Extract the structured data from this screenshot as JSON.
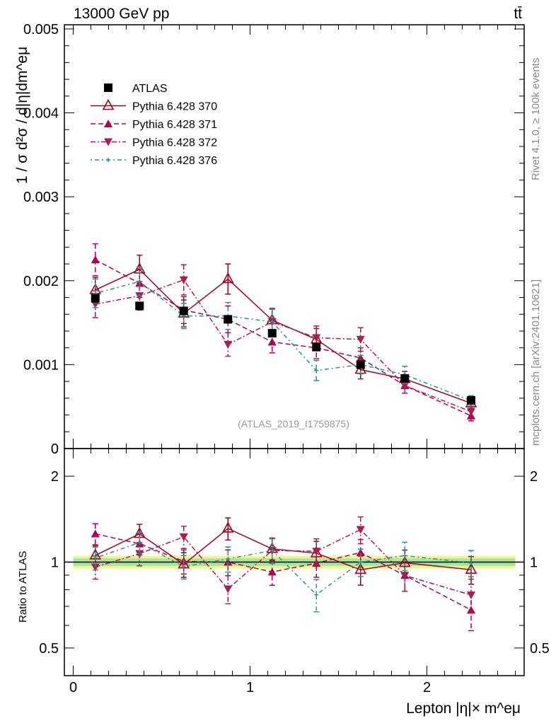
{
  "header": {
    "left": "13000 GeV pp",
    "right": "tt̄"
  },
  "side_labels": {
    "rivet": "Rivet 4.1.0, ≥ 100k events",
    "mcplots": "mcplots.cern.ch [arXiv:2401.10621]"
  },
  "watermark": "(ATLAS_2019_I1759875)",
  "chart_data": [
    {
      "type": "line",
      "panel": "main",
      "ylabel": "1 / σ  d²σ / d|η|dm^eμ",
      "xlabel": "Lepton |η|× m^eμ",
      "xlim": [
        -0.05,
        2.55
      ],
      "ylim": [
        0,
        0.00505
      ],
      "yticks": [
        {
          "v": 0,
          "label": "0"
        },
        {
          "v": 0.001,
          "label": "0.001"
        },
        {
          "v": 0.002,
          "label": "0.002"
        },
        {
          "v": 0.003,
          "label": "0.003"
        },
        {
          "v": 0.004,
          "label": "0.004"
        },
        {
          "v": 0.005,
          "label": "0.005"
        }
      ],
      "legend_position": "top-left",
      "x": [
        0.125,
        0.375,
        0.625,
        0.875,
        1.125,
        1.375,
        1.625,
        1.875,
        2.25
      ],
      "series": [
        {
          "name": "ATLAS",
          "color": "#000000",
          "marker": "square",
          "line": "none",
          "values": [
            0.00179,
            0.0017,
            0.00164,
            0.00154,
            0.001375,
            0.00121,
            0.001,
            0.000835,
            0.000574
          ],
          "err": [
            3e-05,
            3e-05,
            3e-05,
            3e-05,
            3e-05,
            3e-05,
            3e-05,
            2e-05,
            2e-05
          ]
        },
        {
          "name": "Pythia 6.428 370",
          "color": "#a5001e",
          "marker": "open-triangle-up",
          "line": "solid",
          "values": [
            0.00189,
            0.002135,
            0.00161,
            0.00202,
            0.00153,
            0.0013,
            0.00094,
            0.00083,
            0.00054
          ],
          "err": [
            0.00015,
            0.00017,
            0.00016,
            0.00018,
            0.00014,
            0.00013,
            0.00011,
            9e-05,
            6e-05
          ]
        },
        {
          "name": "Pythia 6.428 371",
          "color": "#b5004f",
          "marker": "triangle-up",
          "line": "dashed",
          "values": [
            0.00225,
            0.00197,
            0.00165,
            0.00154,
            0.00127,
            0.0012,
            0.00108,
            0.00075,
            0.00039
          ],
          "err": [
            0.00019,
            0.00017,
            0.00016,
            0.00016,
            0.00013,
            0.00013,
            0.00012,
            9e-05,
            6e-05
          ]
        },
        {
          "name": "Pythia 6.428 372",
          "color": "#b01a4c",
          "marker": "triangle-down",
          "line": "dashdot",
          "values": [
            0.00172,
            0.00182,
            0.00201,
            0.00124,
            0.00151,
            0.00132,
            0.0013,
            0.00075,
            0.00044
          ],
          "err": [
            0.00016,
            0.00017,
            0.00018,
            0.00014,
            0.00015,
            0.00014,
            0.00014,
            9e-05,
            6e-05
          ]
        },
        {
          "name": "Pythia 6.428 376",
          "color": "#1a9e87",
          "marker": "small-cross",
          "line": "dotdash",
          "values": [
            0.00185,
            0.00199,
            0.00158,
            0.00158,
            0.00151,
            0.00093,
            0.001,
            0.00088,
            0.00057
          ],
          "err": [
            0.00017,
            0.00017,
            0.00015,
            0.00016,
            0.00015,
            0.00012,
            0.00011,
            0.0001,
            6e-05
          ]
        }
      ]
    },
    {
      "type": "line",
      "panel": "ratio",
      "ylabel": "Ratio to ATLAS",
      "scale": "log",
      "ylim": [
        0.4,
        2.5
      ],
      "yticks": [
        {
          "v": 0.5,
          "label": "0.5"
        },
        {
          "v": 1,
          "label": "1"
        },
        {
          "v": 2,
          "label": "2"
        }
      ],
      "xticks": [
        {
          "v": 0,
          "label": "0"
        },
        {
          "v": 1,
          "label": "1"
        },
        {
          "v": 2,
          "label": "2"
        }
      ],
      "band_inner": 0.03,
      "band_outer": 0.05
    }
  ]
}
